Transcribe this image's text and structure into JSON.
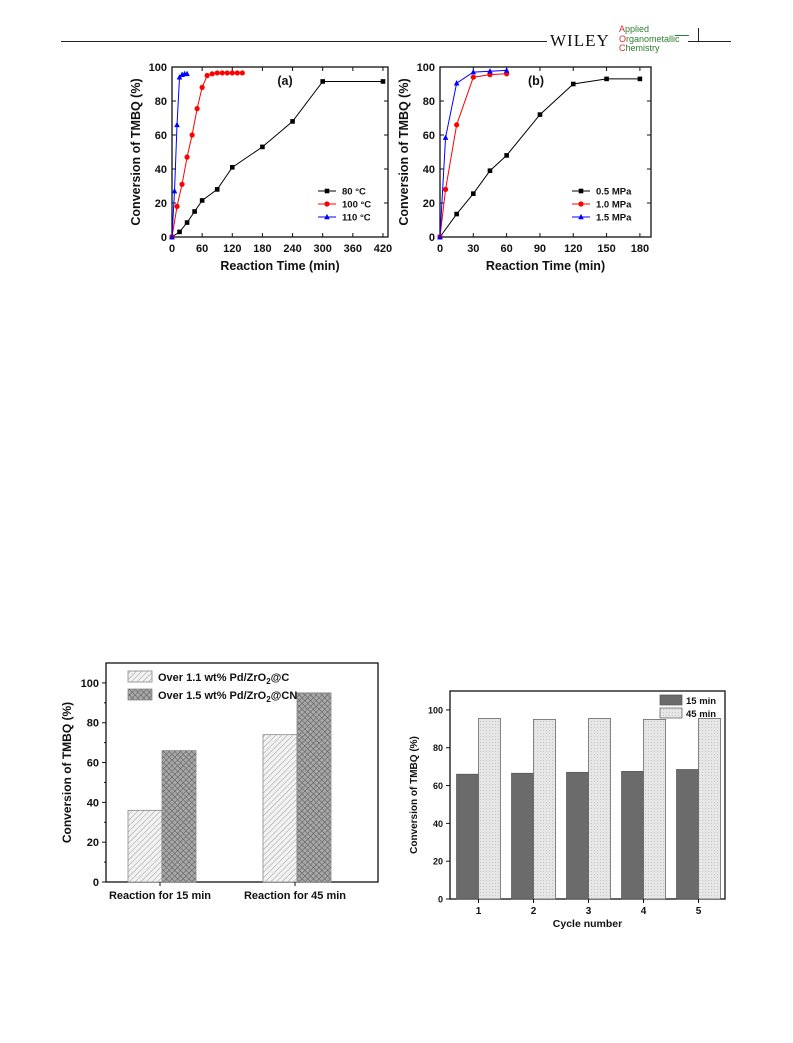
{
  "header": {
    "publisher": "WILEY",
    "journal_lines": [
      {
        "initial": "A",
        "rest": "pplied"
      },
      {
        "initial": "O",
        "rest": "rganometallic"
      },
      {
        "initial": "C",
        "rest": "hemistry"
      }
    ]
  },
  "chart_data": [
    {
      "type": "line",
      "panel_label": "(a)",
      "xlabel": "Reaction Time (min)",
      "ylabel": "Conversion of TMBQ (%)",
      "xlim": [
        0,
        430
      ],
      "ylim": [
        0,
        100
      ],
      "xticks": [
        0,
        60,
        120,
        180,
        240,
        300,
        360,
        420
      ],
      "yticks": [
        0,
        20,
        40,
        60,
        80,
        100
      ],
      "legend_position": "bottom-right",
      "series": [
        {
          "name": "80 °C",
          "marker": "square",
          "color": "#000000",
          "x": [
            0,
            15,
            30,
            45,
            60,
            90,
            120,
            180,
            240,
            300,
            420
          ],
          "y": [
            0,
            3,
            8.5,
            15,
            21.5,
            28,
            41,
            53,
            68,
            91.5,
            91.5
          ]
        },
        {
          "name": "100 °C",
          "marker": "circle",
          "color": "#ff0000",
          "x": [
            0,
            10,
            20,
            30,
            40,
            50,
            60,
            70,
            80,
            90,
            100,
            110,
            120,
            130,
            140
          ],
          "y": [
            0,
            18,
            31,
            47,
            60,
            75.5,
            88,
            95,
            96,
            96.5,
            96.5,
            96.5,
            96.5,
            96.5,
            96.5
          ]
        },
        {
          "name": "110 °C",
          "marker": "triangle",
          "color": "#0000ff",
          "x": [
            0,
            5,
            10,
            15,
            20,
            25,
            30
          ],
          "y": [
            0,
            27,
            66,
            94,
            95.5,
            96,
            96
          ]
        }
      ]
    },
    {
      "type": "line",
      "panel_label": "(b)",
      "xlabel": "Reaction Time (min)",
      "ylabel": "Conversion of TMBQ (%)",
      "xlim": [
        0,
        190
      ],
      "ylim": [
        0,
        100
      ],
      "xticks": [
        0,
        30,
        60,
        90,
        120,
        150,
        180
      ],
      "yticks": [
        0,
        20,
        40,
        60,
        80,
        100
      ],
      "legend_position": "bottom-right",
      "series": [
        {
          "name": "0.5 MPa",
          "marker": "square",
          "color": "#000000",
          "x": [
            0,
            15,
            30,
            45,
            60,
            90,
            120,
            150,
            180
          ],
          "y": [
            0,
            13.5,
            25.5,
            39,
            48,
            72,
            90,
            93,
            93
          ]
        },
        {
          "name": "1.0 MPa",
          "marker": "circle",
          "color": "#ff0000",
          "x": [
            0,
            5,
            15,
            30,
            45,
            60
          ],
          "y": [
            0,
            28,
            66,
            94,
            95.5,
            96
          ]
        },
        {
          "name": "1.5 MPa",
          "marker": "triangle",
          "color": "#0000ff",
          "x": [
            0,
            5,
            15,
            30,
            45,
            60
          ],
          "y": [
            0,
            58.5,
            90.5,
            97,
            97.5,
            98
          ]
        }
      ]
    },
    {
      "type": "bar",
      "categories": [
        "Reaction for 15 min",
        "Reaction for 45 min"
      ],
      "ylabel": "Conversion of TMBQ (%)",
      "ylim": [
        0,
        110
      ],
      "yticks": [
        0,
        20,
        40,
        60,
        80,
        100
      ],
      "legend_position": "top-left",
      "series": [
        {
          "name": "Over 1.1 wt% Pd/ZrO",
          "sub": "2",
          "suffix": "@C",
          "pattern": "light-hatch",
          "values": [
            36,
            74
          ]
        },
        {
          "name": "Over 1.5 wt% Pd/ZrO",
          "sub": "2",
          "suffix": "@CN",
          "pattern": "dark-crosshatch",
          "values": [
            66,
            95
          ]
        }
      ]
    },
    {
      "type": "bar",
      "categories": [
        "1",
        "2",
        "3",
        "4",
        "5"
      ],
      "xlabel": "Cycle number",
      "ylabel": "Conversion of TMBQ (%)",
      "ylim": [
        0,
        110
      ],
      "yticks": [
        0,
        20,
        40,
        60,
        80,
        100
      ],
      "legend_position": "top-right",
      "series": [
        {
          "name": "15 min",
          "pattern": "dark",
          "values": [
            66,
            66.5,
            67,
            67.5,
            68.5
          ]
        },
        {
          "name": "45 min",
          "pattern": "light",
          "values": [
            95.5,
            95,
            95.5,
            95,
            95.5
          ]
        }
      ]
    }
  ]
}
